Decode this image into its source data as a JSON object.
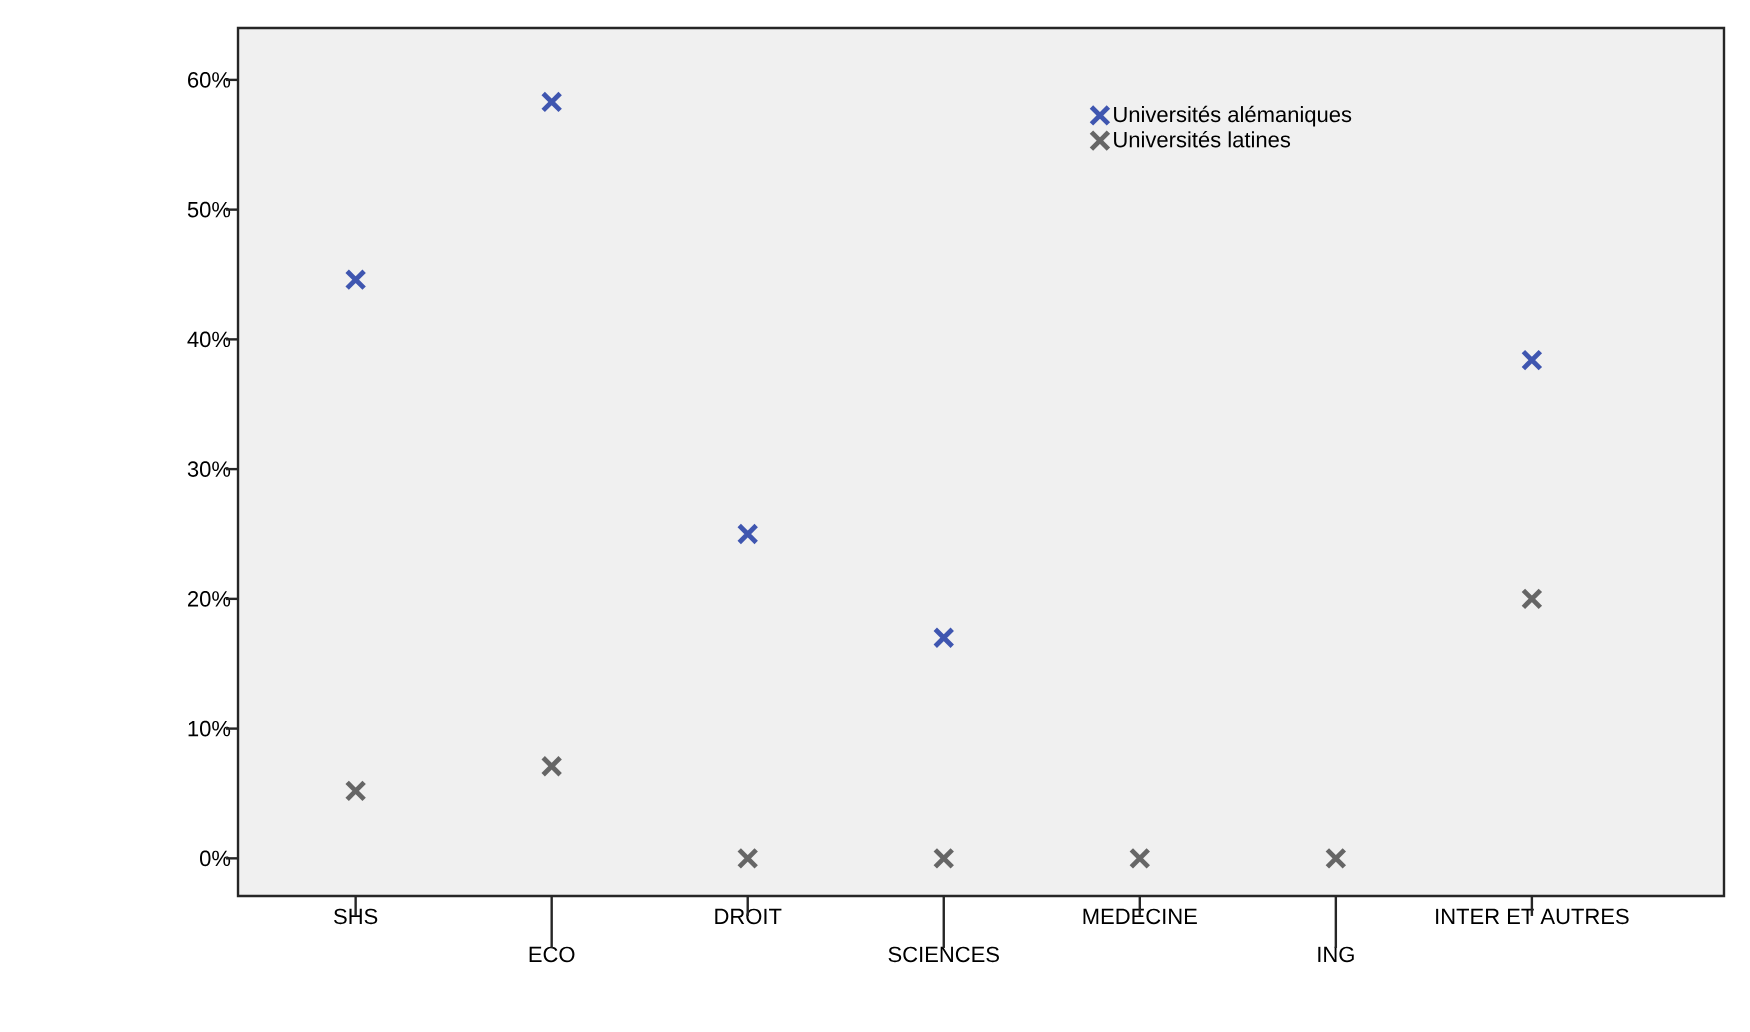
{
  "chart_data": {
    "type": "scatter",
    "categories": [
      "SHS",
      "ECO",
      "DROIT",
      "SCIENCES",
      "MEDECINE",
      "ING",
      "INTER ET AUTRES"
    ],
    "series": [
      {
        "name": "Universités alémaniques",
        "color": "#3f56b0",
        "values": [
          44.6,
          58.3,
          25.0,
          17.0,
          null,
          null,
          38.4
        ]
      },
      {
        "name": "Universités latines",
        "color": "#666666",
        "values": [
          5.2,
          7.1,
          0,
          0,
          0,
          0,
          20.0
        ]
      }
    ],
    "ylim": [
      -2.9,
      64
    ],
    "yticks": [
      {
        "value": 0,
        "label": "0%"
      },
      {
        "value": 10,
        "label": "10%"
      },
      {
        "value": 20,
        "label": "20%"
      },
      {
        "value": 30,
        "label": "30%"
      },
      {
        "value": 40,
        "label": "40%"
      },
      {
        "value": 50,
        "label": "50%"
      },
      {
        "value": 60,
        "label": "60%"
      }
    ],
    "marker": "cross",
    "grid": false,
    "legend": "top right"
  }
}
